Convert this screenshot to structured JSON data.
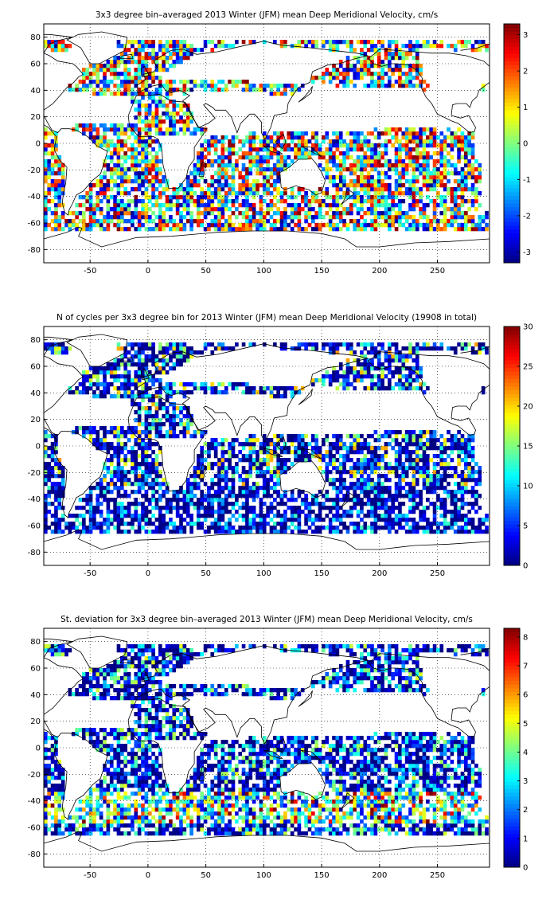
{
  "chart_data": [
    {
      "type": "heatmap",
      "title": "3x3 degree bin–averaged 2013 Winter (JFM) mean Deep Meridional Velocity, cm/s",
      "xlabel": "",
      "ylabel": "",
      "xlim": [
        -90,
        295
      ],
      "ylim": [
        -90,
        90
      ],
      "xticks": [
        -50,
        0,
        50,
        100,
        150,
        200,
        250
      ],
      "yticks": [
        -80,
        -60,
        -40,
        -20,
        0,
        20,
        40,
        60,
        80
      ],
      "grid": true,
      "colorbar": {
        "min": -3.3,
        "max": 3.3,
        "ticks": [
          -3,
          -2,
          -1,
          0,
          1,
          2,
          3
        ],
        "colormap": "jet"
      },
      "field": "mean"
    },
    {
      "type": "heatmap",
      "title": "N of cycles per 3x3 degree bin for 2013 Winter (JFM) mean Deep Meridional Velocity (19908 in total)",
      "xlabel": "",
      "ylabel": "",
      "xlim": [
        -90,
        295
      ],
      "ylim": [
        -90,
        90
      ],
      "xticks": [
        -50,
        0,
        50,
        100,
        150,
        200,
        250
      ],
      "yticks": [
        -80,
        -60,
        -40,
        -20,
        0,
        20,
        40,
        60,
        80
      ],
      "grid": true,
      "colorbar": {
        "min": 0,
        "max": 30,
        "ticks": [
          0,
          5,
          10,
          15,
          20,
          25,
          30
        ],
        "colormap": "jet"
      },
      "field": "count"
    },
    {
      "type": "heatmap",
      "title": "St. deviation for 3x3 degree bin–averaged 2013 Winter (JFM) mean Deep Meridional Velocity, cm/s",
      "xlabel": "",
      "ylabel": "",
      "xlim": [
        -90,
        295
      ],
      "ylim": [
        -90,
        90
      ],
      "xticks": [
        -50,
        0,
        50,
        100,
        150,
        200,
        250
      ],
      "yticks": [
        -80,
        -60,
        -40,
        -20,
        0,
        20,
        40,
        60,
        80
      ],
      "grid": true,
      "colorbar": {
        "min": 0,
        "max": 8.3,
        "ticks": [
          0,
          1,
          2,
          3,
          4,
          5,
          6,
          7,
          8
        ],
        "colormap": "jet"
      },
      "field": "std"
    }
  ]
}
